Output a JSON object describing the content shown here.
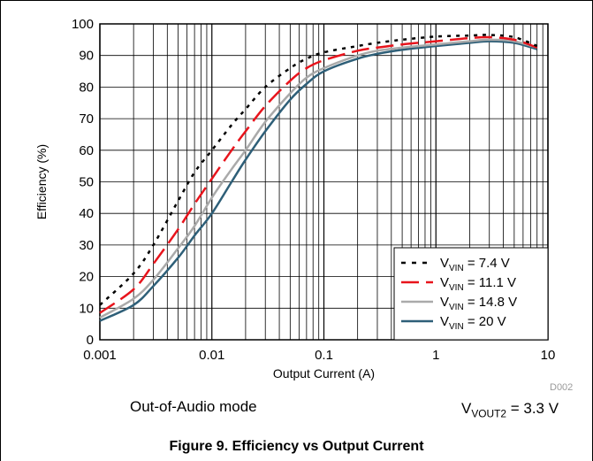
{
  "chart_data": {
    "type": "line",
    "x_scale": "log",
    "xlim": [
      0.001,
      10
    ],
    "ylim": [
      0,
      100
    ],
    "xlabel": "Output Current (A)",
    "ylabel": "Efficiency (%)",
    "x_ticks": [
      "0.001",
      "0.01",
      "0.1",
      "1",
      "10"
    ],
    "y_ticks": [
      "0",
      "10",
      "20",
      "30",
      "40",
      "50",
      "60",
      "70",
      "80",
      "90",
      "100"
    ],
    "grid": true,
    "legend_position": "bottom-right",
    "series": [
      {
        "label_main": "V",
        "label_sub": "VIN",
        "label_rest": " = 7.4 V",
        "color": "#000000",
        "dash": "dots",
        "x": [
          0.001,
          0.002,
          0.003,
          0.005,
          0.007,
          0.01,
          0.015,
          0.02,
          0.03,
          0.05,
          0.07,
          0.1,
          0.2,
          0.3,
          0.5,
          1,
          2,
          3,
          5,
          8
        ],
        "y": [
          11,
          21,
          30,
          44,
          53,
          60,
          68,
          73,
          80,
          86,
          89,
          91,
          93,
          94,
          95,
          96,
          96.3,
          96.5,
          95.8,
          93
        ]
      },
      {
        "label_main": "V",
        "label_sub": "VIN",
        "label_rest": " = 11.1 V",
        "color": "#e8141c",
        "dash": "long",
        "x": [
          0.001,
          0.002,
          0.003,
          0.005,
          0.007,
          0.01,
          0.015,
          0.02,
          0.03,
          0.05,
          0.07,
          0.1,
          0.2,
          0.3,
          0.5,
          1,
          2,
          3,
          5,
          8
        ],
        "y": [
          8.5,
          16,
          24,
          35,
          43,
          51,
          60,
          66,
          74,
          82,
          86,
          88.5,
          91.5,
          92.5,
          93.5,
          94.5,
          95.5,
          95.8,
          95,
          92.5
        ]
      },
      {
        "label_main": "V",
        "label_sub": "VIN",
        "label_rest": " = 14.8 V",
        "color": "#aaaaaa",
        "dash": "solid",
        "x": [
          0.001,
          0.002,
          0.003,
          0.005,
          0.007,
          0.01,
          0.015,
          0.02,
          0.03,
          0.05,
          0.07,
          0.1,
          0.2,
          0.3,
          0.5,
          1,
          2,
          3,
          5,
          8
        ],
        "y": [
          7,
          13,
          19,
          29,
          36,
          45,
          54,
          60,
          69,
          78,
          83,
          86,
          90,
          91.5,
          92.5,
          93.5,
          94.5,
          95,
          94.5,
          92.5
        ]
      },
      {
        "label_main": "V",
        "label_sub": "VIN",
        "label_rest": " = 20 V",
        "color": "#2e5f78",
        "dash": "solid",
        "x": [
          0.001,
          0.002,
          0.003,
          0.005,
          0.007,
          0.01,
          0.015,
          0.02,
          0.03,
          0.05,
          0.07,
          0.1,
          0.2,
          0.3,
          0.5,
          1,
          2,
          3,
          5,
          8
        ],
        "y": [
          6,
          11,
          17,
          26,
          33,
          40,
          50,
          57,
          66,
          76,
          81,
          85,
          89,
          90.5,
          91.8,
          93,
          94,
          94.5,
          94,
          92
        ]
      }
    ],
    "annotations": {
      "mode": "Out-of-Audio mode",
      "vout_main": "V",
      "vout_sub": "VOUT2",
      "vout_rest": " = 3.3 V",
      "code": "D002"
    },
    "caption": "Figure 9. Efficiency vs Output Current"
  }
}
